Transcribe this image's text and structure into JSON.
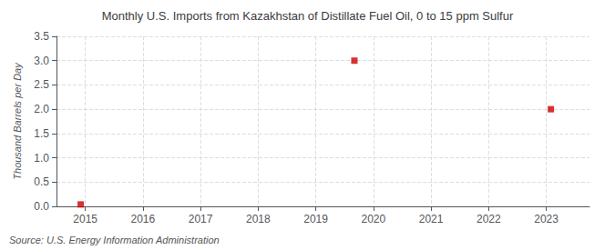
{
  "chart_data": {
    "type": "scatter",
    "title": "Monthly U.S. Imports from Kazakhstan of Distillate Fuel Oil, 0 to 15 ppm Sulfur",
    "ylabel": "Thousand Barrels per Day",
    "annotations": [
      "Source: U.S. Energy Information Administration"
    ],
    "x": [
      2014.92,
      2019.67,
      2023.08
    ],
    "values": [
      0.04,
      3.0,
      2.0
    ],
    "color": "#cc0000",
    "marker": "square",
    "xlim": [
      2014.5,
      2023.75
    ],
    "ylim": [
      0.0,
      3.5
    ],
    "xticks": [
      2015,
      2016,
      2017,
      2018,
      2019,
      2020,
      2021,
      2022,
      2023
    ],
    "yticks": [
      {
        "value": 0,
        "label": "0.0"
      },
      0.5,
      {
        "value": 1,
        "label": "1.0"
      },
      1.5,
      {
        "value": 2,
        "label": "2.0"
      },
      2.5,
      {
        "value": 3,
        "label": "3.0"
      },
      3.5
    ],
    "grid": true
  }
}
